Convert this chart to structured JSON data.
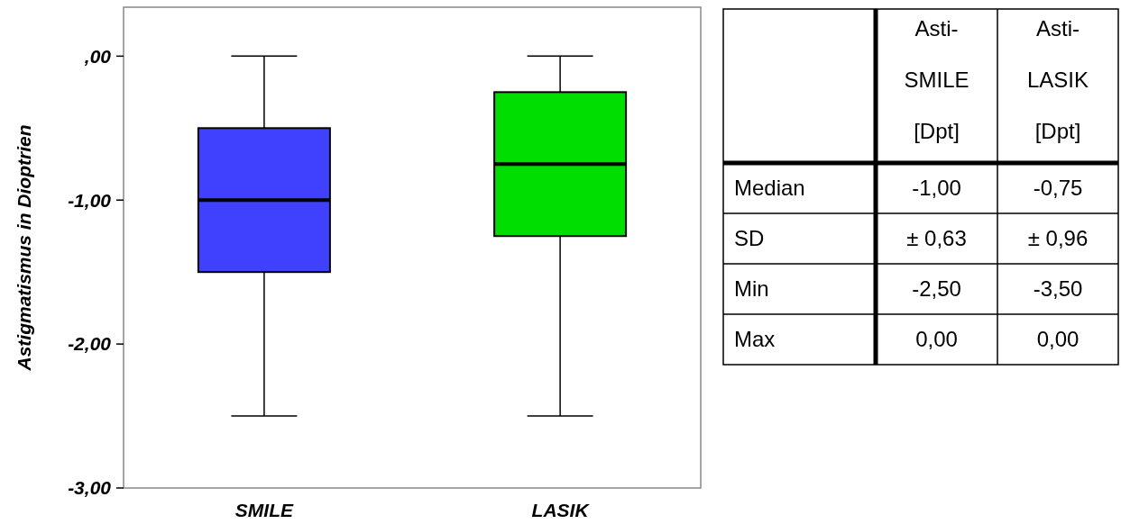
{
  "chart_data": [
    {
      "type": "box",
      "ylabel": "Astigmatismus in Dioptrien",
      "categories": [
        "SMILE",
        "LASIK"
      ],
      "colors": [
        "#4040ff",
        "#00dd00"
      ],
      "boxes": [
        {
          "low": -2.5,
          "q1": -1.5,
          "median": -1,
          "q3": -0.5,
          "high": 0
        },
        {
          "low": -2.5,
          "q1": -1.25,
          "median": -0.75,
          "q3": -0.25,
          "high": 0
        }
      ],
      "ylim": [
        -3,
        0.34
      ],
      "yticks": [
        {
          "value": 0,
          "label": ",00"
        },
        {
          "value": -1,
          "label": "-1,00"
        },
        {
          "value": -2,
          "label": "-2,00"
        },
        {
          "value": -3,
          "label": "-3,00"
        }
      ]
    },
    {
      "type": "other",
      "categories": [
        "Asti-SMILE [Dpt]",
        "Asti-LASIK [Dpt]"
      ],
      "y_categories": [
        "Median",
        "SD",
        "Min",
        "Max"
      ],
      "cell_labels": [
        [
          "-1,00",
          "-0,75"
        ],
        [
          "± 0,63",
          "± 0,96"
        ],
        [
          "-2,50",
          "-3,50"
        ],
        [
          "0,00",
          "0,00"
        ]
      ]
    }
  ]
}
